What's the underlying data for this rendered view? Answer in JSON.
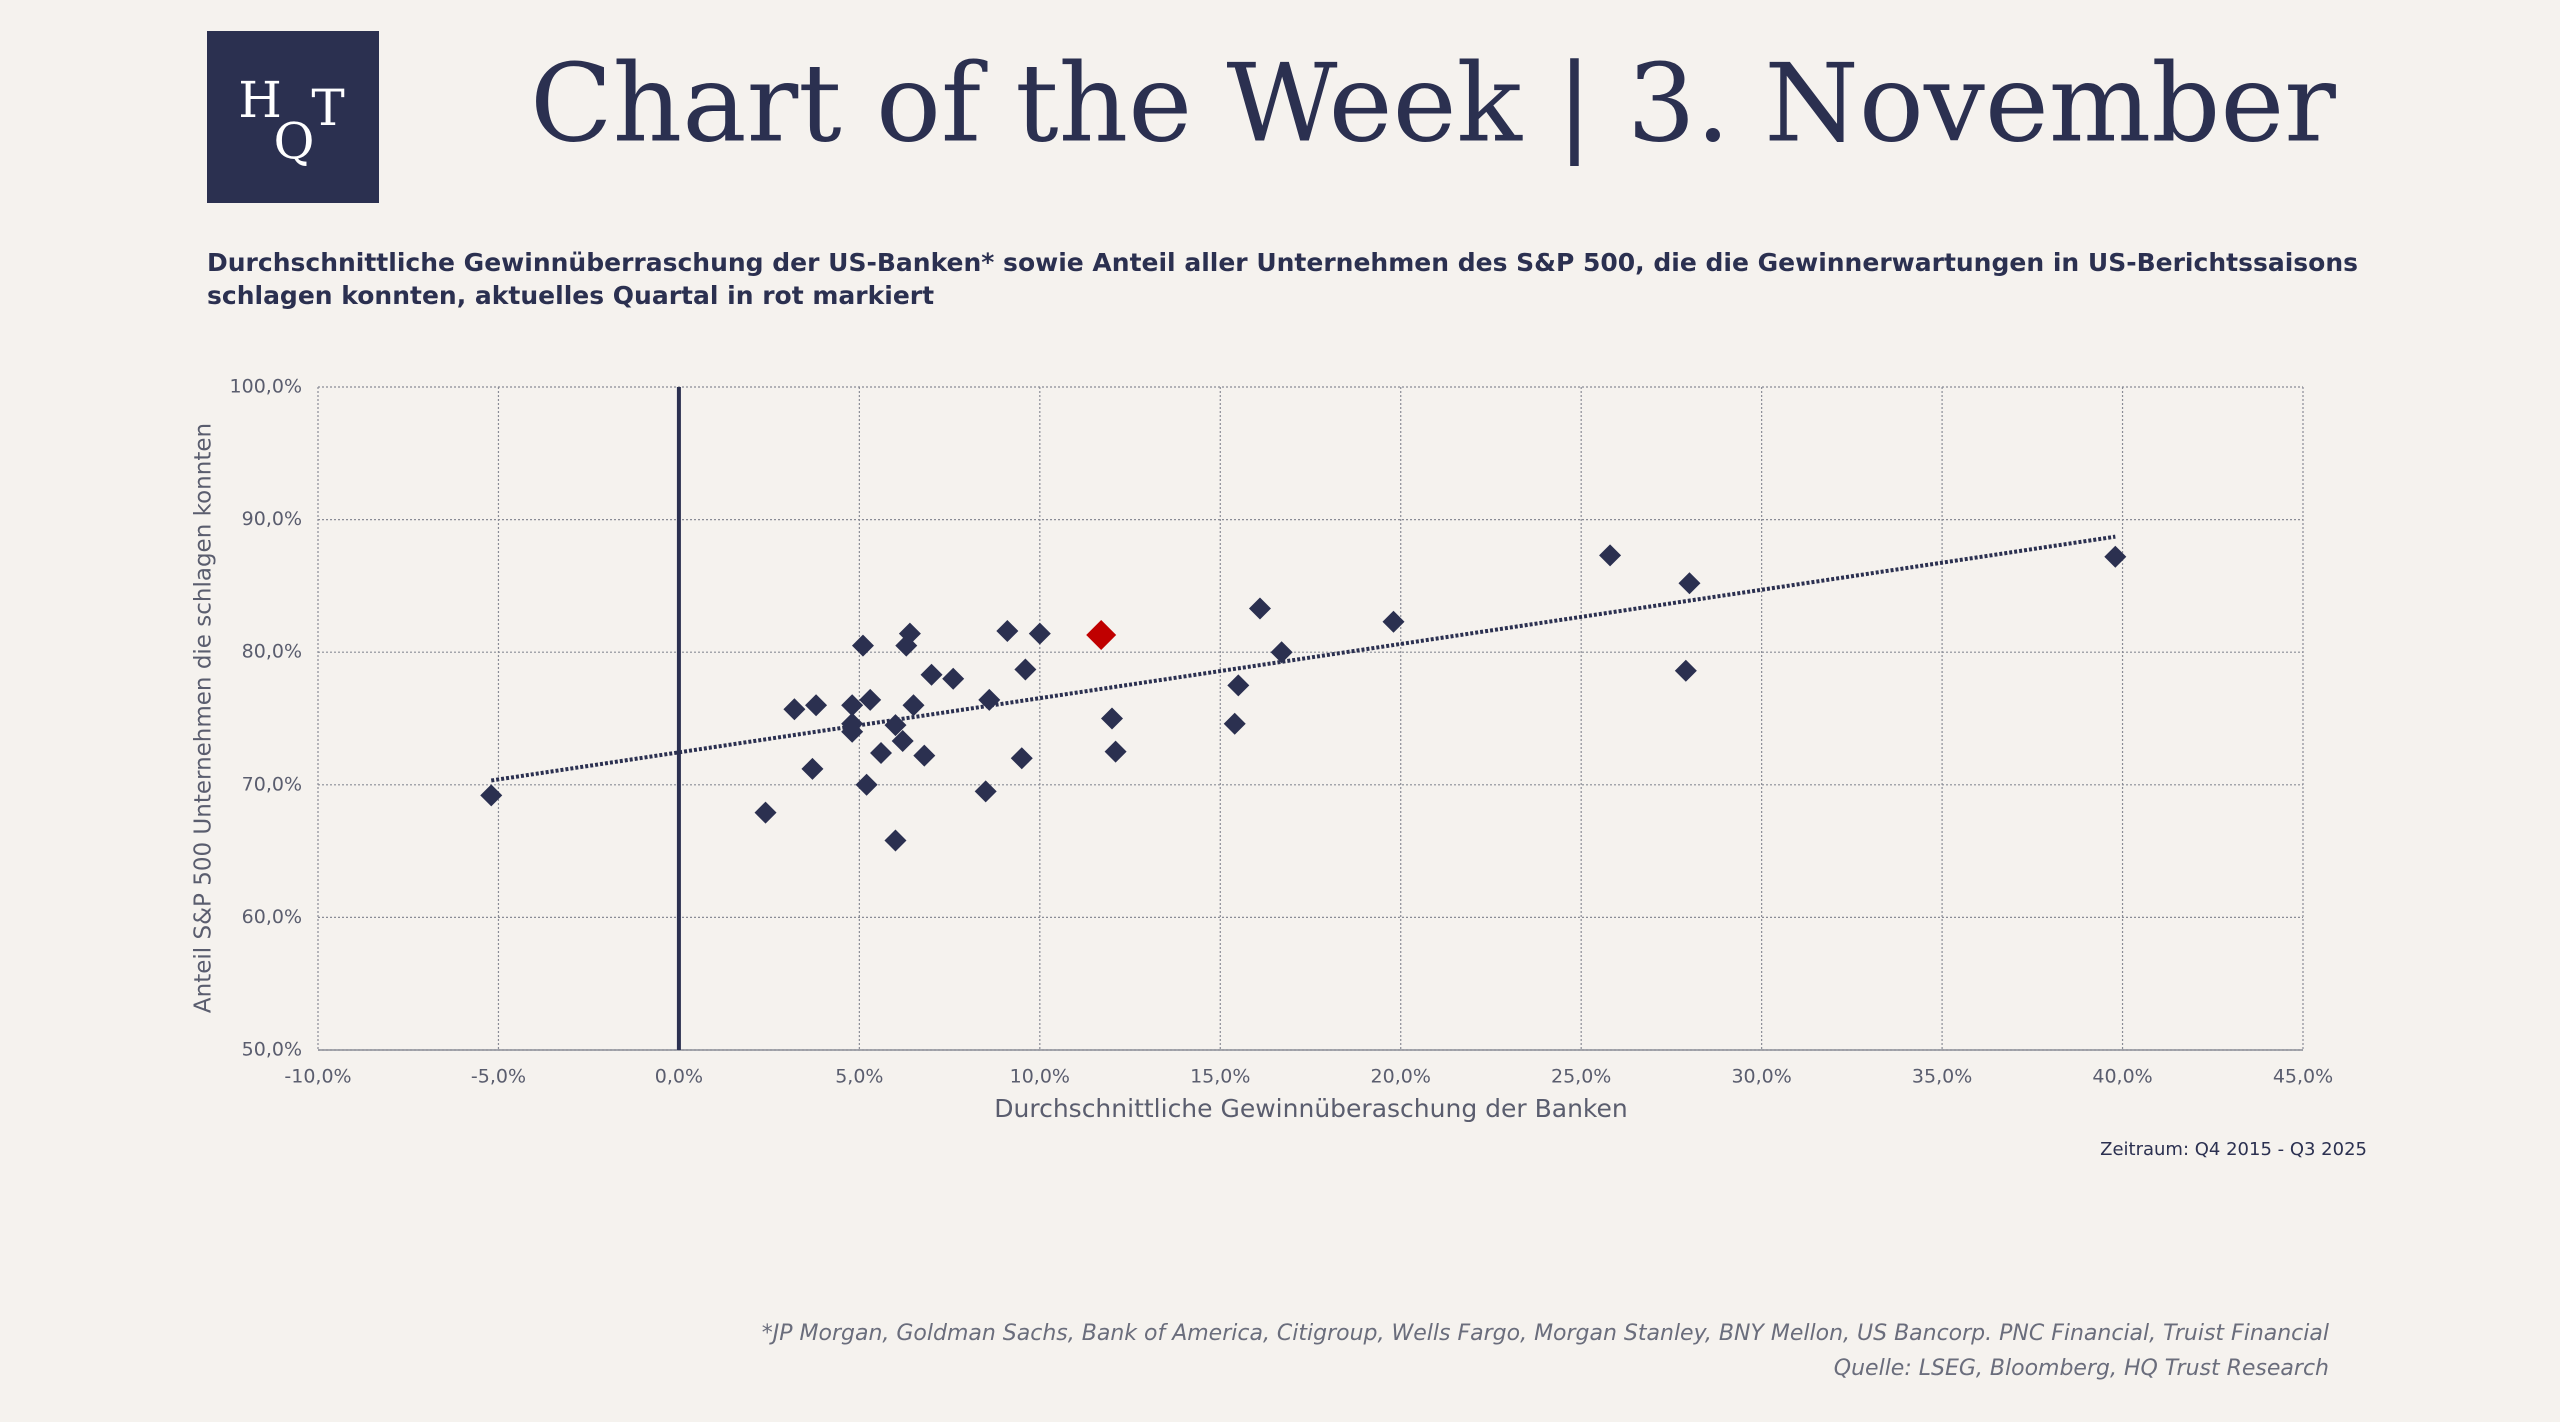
{
  "header": {
    "logo": [
      "H",
      "Q",
      "T"
    ],
    "title": "Chart of the Week | 3. November"
  },
  "chart_data": {
    "type": "scatter",
    "subtitle": [
      "Durchschnittliche Gewinnüberraschung der US-Banken* sowie Anteil aller Unternehmen des S&P 500, die die Gewinnerwartungen in US-Berichtssaisons",
      "schlagen konnten, aktuelles Quartal in rot markiert"
    ],
    "x_label": "Durchschnittliche Gewinnüberaschung der Banken",
    "y_label": "Anteil S&P 500 Unternehmen die schlagen konnten",
    "annotation": "Zeitraum: Q4 2015 - Q3 2025",
    "series": [
      {
        "color": "#2b3050",
        "x": [
          -5.2,
          2.4,
          3.2,
          3.8,
          3.7,
          4.8,
          4.8,
          4.8,
          5.1,
          5.3,
          5.2,
          5.6,
          6.0,
          6.0,
          6.2,
          6.3,
          6.4,
          6.5,
          6.8,
          7.0,
          7.6,
          8.5,
          8.6,
          9.1,
          9.5,
          9.6,
          10.0,
          12.0,
          12.1,
          15.5,
          15.4,
          16.1,
          16.7,
          19.8,
          25.8,
          28.0,
          27.9,
          39.8
        ],
        "values": [
          69.2,
          67.9,
          75.7,
          76.0,
          71.2,
          76.0,
          74.6,
          74.0,
          80.5,
          76.4,
          70.0,
          72.4,
          74.5,
          65.8,
          73.3,
          80.5,
          81.4,
          76.0,
          72.2,
          78.3,
          78.0,
          69.5,
          76.4,
          81.6,
          72.0,
          78.7,
          81.4,
          75.0,
          72.5,
          77.5,
          74.6,
          83.3,
          80.0,
          82.3,
          87.3,
          85.2,
          78.6,
          87.2
        ]
      },
      {
        "color": "#c00000",
        "x": [
          11.7
        ],
        "values": [
          81.3
        ]
      }
    ],
    "trendline": true,
    "xlim": [
      -10,
      45
    ],
    "xticks": [
      {
        "value": -10,
        "label": "-10,0%"
      },
      {
        "value": -5,
        "label": "-5,0%"
      },
      {
        "value": 0,
        "label": "0,0%"
      },
      {
        "value": 5,
        "label": "5,0%"
      },
      {
        "value": 10,
        "label": "10,0%"
      },
      {
        "value": 15,
        "label": "15,0%"
      },
      {
        "value": 20,
        "label": "20,0%"
      },
      {
        "value": 25,
        "label": "25,0%"
      },
      {
        "value": 30,
        "label": "30,0%"
      },
      {
        "value": 35,
        "label": "35,0%"
      },
      {
        "value": 40,
        "label": "40,0%"
      },
      {
        "value": 45,
        "label": "45,0%"
      }
    ],
    "ylim": [
      50,
      100
    ],
    "yticks": [
      {
        "value": 50,
        "label": "50,0%"
      },
      {
        "value": 60,
        "label": "60,0%"
      },
      {
        "value": 70,
        "label": "70,0%"
      },
      {
        "value": 80,
        "label": "80,0%"
      },
      {
        "value": 90,
        "label": "90,0%"
      },
      {
        "value": 100,
        "label": "100,0%"
      }
    ],
    "grid": true
  },
  "footer": {
    "notes": [
      "*JP Morgan, Goldman Sachs, Bank of America, Citigroup, Wells Fargo, Morgan Stanley, BNY Mellon, US Bancorp. PNC Financial, Truist Financial",
      "Quelle: LSEG, Bloomberg, HQ Trust Research"
    ]
  }
}
